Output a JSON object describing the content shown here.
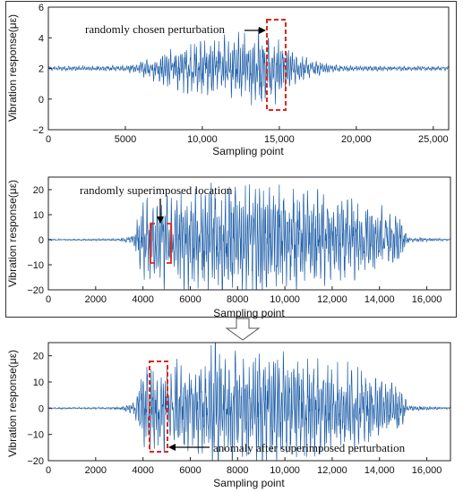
{
  "chart_data": [
    {
      "type": "line",
      "xlabel": "Sampling point",
      "ylabel": "Vibration response(με)",
      "xlim": [
        0,
        26000
      ],
      "ylim": [
        -2,
        6
      ],
      "xticks": [
        0,
        5000,
        10000,
        15000,
        20000,
        25000
      ],
      "xtick_labels": [
        "0",
        "5000",
        "10,000",
        "15,000",
        "20,000",
        "25,000"
      ],
      "yticks": [
        -2,
        0,
        2,
        4,
        6
      ],
      "ytick_labels": [
        "−2",
        "0",
        "2",
        "4",
        "6"
      ],
      "series": [
        {
          "color": "#1f5fa8",
          "baseline": 2,
          "envelope": [
            [
              0,
              0.12
            ],
            [
              5000,
              0.18
            ],
            [
              6500,
              0.6
            ],
            [
              8000,
              1.2
            ],
            [
              10000,
              1.7
            ],
            [
              12000,
              1.9
            ],
            [
              14000,
              2.2
            ],
            [
              15000,
              1.8
            ],
            [
              16000,
              0.9
            ],
            [
              18000,
              0.3
            ],
            [
              20000,
              0.14
            ],
            [
              26000,
              0.12
            ]
          ]
        }
      ],
      "annotations": [
        {
          "text": "randomly chosen perturbation",
          "box_x": [
            14100,
            15300
          ],
          "box_y": [
            -0.7,
            5.7
          ]
        }
      ]
    },
    {
      "type": "line",
      "xlabel": "Sampling point",
      "ylabel": "Vibration response(με)",
      "xlim": [
        0,
        17000
      ],
      "ylim": [
        -20,
        25
      ],
      "xticks": [
        0,
        2000,
        4000,
        6000,
        8000,
        10000,
        12000,
        14000,
        16000
      ],
      "xtick_labels": [
        "0",
        "2000",
        "4000",
        "6000",
        "8000",
        "10,000",
        "12,000",
        "14,000",
        "16,000"
      ],
      "yticks": [
        -20,
        -10,
        0,
        10,
        20
      ],
      "ytick_labels": [
        "−20",
        "−10",
        "0",
        "10",
        "20"
      ],
      "series": [
        {
          "color": "#1f5fa8",
          "baseline": 0,
          "envelope": [
            [
              0,
              0.3
            ],
            [
              3000,
              0.4
            ],
            [
              3600,
              2
            ],
            [
              4000,
              14
            ],
            [
              5000,
              16
            ],
            [
              6500,
              18
            ],
            [
              7000,
              22
            ],
            [
              8500,
              19
            ],
            [
              10000,
              20
            ],
            [
              11000,
              17
            ],
            [
              12500,
              15
            ],
            [
              14000,
              12
            ],
            [
              14800,
              10
            ],
            [
              15200,
              1
            ],
            [
              17000,
              0.3
            ]
          ]
        }
      ],
      "annotations": [
        {
          "text": "randomly superimposed location",
          "brackets": [
            [
              4380,
              4720
            ],
            [
              4850,
              5250
            ]
          ],
          "bracket_y": [
            -5,
            5
          ]
        }
      ]
    },
    {
      "type": "line",
      "xlabel": "Sampling point",
      "ylabel": "Vibration response(με)",
      "xlim": [
        0,
        17000
      ],
      "ylim": [
        -20,
        25
      ],
      "xticks": [
        0,
        2000,
        4000,
        6000,
        8000,
        10000,
        12000,
        14000,
        16000
      ],
      "xtick_labels": [
        "0",
        "2000",
        "4000",
        "6000",
        "8000",
        "10,000",
        "12,000",
        "14,000",
        "16,000"
      ],
      "yticks": [
        -20,
        -10,
        0,
        10,
        20
      ],
      "ytick_labels": [
        "−20",
        "−10",
        "0",
        "10",
        "20"
      ],
      "series": [
        {
          "color": "#1f5fa8",
          "baseline": 0,
          "envelope": [
            [
              0,
              0.3
            ],
            [
              3000,
              0.4
            ],
            [
              3600,
              2
            ],
            [
              4000,
              14
            ],
            [
              5000,
              16
            ],
            [
              6500,
              18
            ],
            [
              7000,
              22
            ],
            [
              8500,
              19
            ],
            [
              10000,
              20
            ],
            [
              11000,
              17
            ],
            [
              12500,
              15
            ],
            [
              14000,
              12
            ],
            [
              14800,
              10
            ],
            [
              15200,
              1
            ],
            [
              17000,
              0.3
            ]
          ]
        }
      ],
      "annotations": [
        {
          "text": "anomaly after superimposed perturbation",
          "box_x": [
            4350,
            5050
          ],
          "box_y": [
            -19,
            16
          ]
        }
      ]
    }
  ]
}
